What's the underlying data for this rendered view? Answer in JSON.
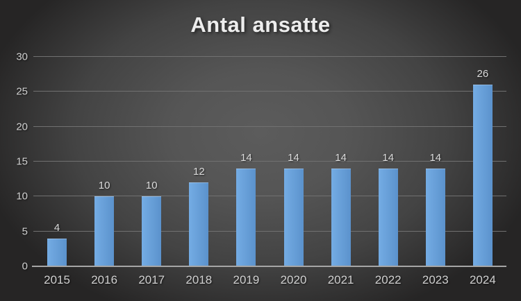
{
  "title": "Antal ansatte",
  "chart_data": {
    "type": "bar",
    "title": "Antal ansatte",
    "categories": [
      "2015",
      "2016",
      "2017",
      "2018",
      "2019",
      "2020",
      "2021",
      "2022",
      "2023",
      "2024"
    ],
    "values": [
      4,
      10,
      10,
      12,
      14,
      14,
      14,
      14,
      14,
      26
    ],
    "series": [
      {
        "name": "Antal ansatte",
        "values": [
          4,
          10,
          10,
          12,
          14,
          14,
          14,
          14,
          14,
          26
        ]
      }
    ],
    "xlabel": "",
    "ylabel": "",
    "ylim": [
      0,
      30
    ],
    "yticks": [
      0,
      5,
      10,
      15,
      20,
      25,
      30
    ],
    "grid": true,
    "legend": false,
    "data_labels_visible": true
  },
  "colors": {
    "background_center": "#5c5c5c",
    "background_edge": "#262525",
    "bar_left": "#74ace4",
    "bar_right": "#5b92cc",
    "gridline": "#717171",
    "axis_line": "#a6a6a6",
    "title_text": "#ededed",
    "label_text": "#dcdcdc",
    "tick_text": "#d0d0d0"
  }
}
